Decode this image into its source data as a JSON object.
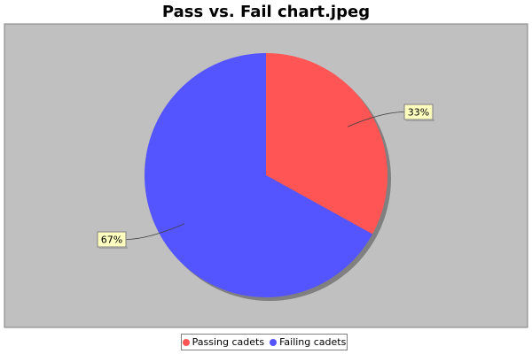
{
  "chart_data": {
    "type": "pie",
    "title": "Pass vs. Fail chart.jpeg",
    "slices": [
      {
        "label": "Passing cadets",
        "value": 33,
        "display": "33%",
        "color": "#ff5555"
      },
      {
        "label": "Failing cadets",
        "value": 67,
        "display": "67%",
        "color": "#5555ff"
      }
    ],
    "plot_background": "#c0c0c0",
    "label_background": "#ffffc0",
    "legend_position": "bottom",
    "start": "top",
    "direction": "clockwise"
  }
}
